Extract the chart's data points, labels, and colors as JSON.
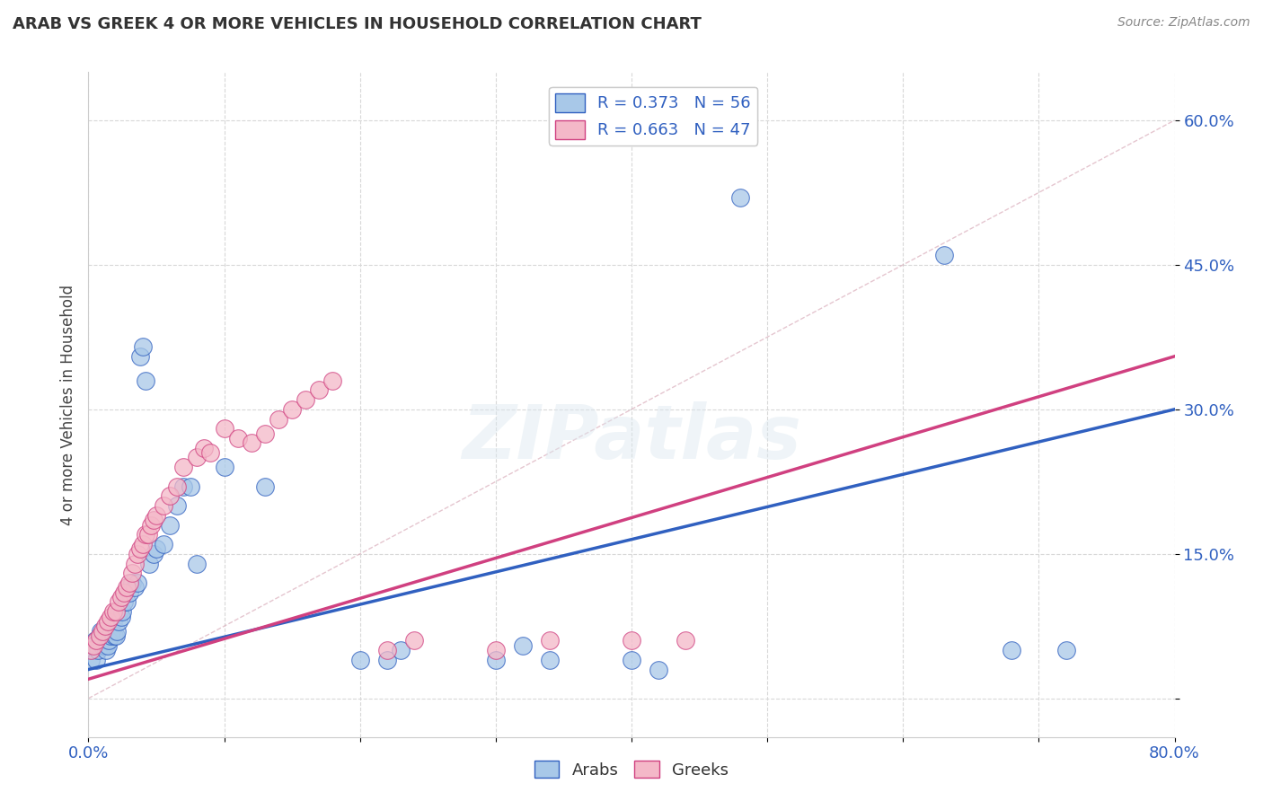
{
  "title": "ARAB VS GREEK 4 OR MORE VEHICLES IN HOUSEHOLD CORRELATION CHART",
  "source": "Source: ZipAtlas.com",
  "ylabel_label": "4 or more Vehicles in Household",
  "yticks": [
    0.0,
    0.15,
    0.3,
    0.45,
    0.6
  ],
  "ytick_labels": [
    "",
    "15.0%",
    "30.0%",
    "45.0%",
    "60.0%"
  ],
  "xlim": [
    0.0,
    0.8
  ],
  "ylim": [
    -0.04,
    0.65
  ],
  "arab_color": "#a8c8e8",
  "greek_color": "#f4b8c8",
  "arab_line_color": "#3060c0",
  "greek_line_color": "#d04080",
  "legend_R_arab": "R = 0.373",
  "legend_N_arab": "N = 56",
  "legend_R_greek": "R = 0.663",
  "legend_N_greek": "N = 47",
  "arab_scatter": [
    [
      0.002,
      0.04
    ],
    [
      0.003,
      0.05
    ],
    [
      0.004,
      0.055
    ],
    [
      0.005,
      0.06
    ],
    [
      0.006,
      0.04
    ],
    [
      0.007,
      0.05
    ],
    [
      0.008,
      0.06
    ],
    [
      0.009,
      0.07
    ],
    [
      0.01,
      0.055
    ],
    [
      0.011,
      0.06
    ],
    [
      0.012,
      0.055
    ],
    [
      0.013,
      0.05
    ],
    [
      0.014,
      0.055
    ],
    [
      0.015,
      0.06
    ],
    [
      0.016,
      0.065
    ],
    [
      0.017,
      0.07
    ],
    [
      0.018,
      0.08
    ],
    [
      0.019,
      0.065
    ],
    [
      0.02,
      0.065
    ],
    [
      0.021,
      0.07
    ],
    [
      0.022,
      0.08
    ],
    [
      0.023,
      0.09
    ],
    [
      0.024,
      0.085
    ],
    [
      0.025,
      0.09
    ],
    [
      0.026,
      0.1
    ],
    [
      0.028,
      0.1
    ],
    [
      0.03,
      0.11
    ],
    [
      0.032,
      0.12
    ],
    [
      0.034,
      0.115
    ],
    [
      0.036,
      0.12
    ],
    [
      0.038,
      0.355
    ],
    [
      0.04,
      0.365
    ],
    [
      0.042,
      0.33
    ],
    [
      0.045,
      0.14
    ],
    [
      0.048,
      0.15
    ],
    [
      0.05,
      0.155
    ],
    [
      0.055,
      0.16
    ],
    [
      0.06,
      0.18
    ],
    [
      0.065,
      0.2
    ],
    [
      0.07,
      0.22
    ],
    [
      0.075,
      0.22
    ],
    [
      0.08,
      0.14
    ],
    [
      0.1,
      0.24
    ],
    [
      0.13,
      0.22
    ],
    [
      0.2,
      0.04
    ],
    [
      0.22,
      0.04
    ],
    [
      0.23,
      0.05
    ],
    [
      0.3,
      0.04
    ],
    [
      0.32,
      0.055
    ],
    [
      0.34,
      0.04
    ],
    [
      0.4,
      0.04
    ],
    [
      0.42,
      0.03
    ],
    [
      0.48,
      0.52
    ],
    [
      0.63,
      0.46
    ],
    [
      0.68,
      0.05
    ],
    [
      0.72,
      0.05
    ]
  ],
  "greek_scatter": [
    [
      0.002,
      0.05
    ],
    [
      0.004,
      0.055
    ],
    [
      0.006,
      0.06
    ],
    [
      0.008,
      0.065
    ],
    [
      0.01,
      0.07
    ],
    [
      0.012,
      0.075
    ],
    [
      0.014,
      0.08
    ],
    [
      0.016,
      0.085
    ],
    [
      0.018,
      0.09
    ],
    [
      0.02,
      0.09
    ],
    [
      0.022,
      0.1
    ],
    [
      0.024,
      0.105
    ],
    [
      0.026,
      0.11
    ],
    [
      0.028,
      0.115
    ],
    [
      0.03,
      0.12
    ],
    [
      0.032,
      0.13
    ],
    [
      0.034,
      0.14
    ],
    [
      0.036,
      0.15
    ],
    [
      0.038,
      0.155
    ],
    [
      0.04,
      0.16
    ],
    [
      0.042,
      0.17
    ],
    [
      0.044,
      0.17
    ],
    [
      0.046,
      0.18
    ],
    [
      0.048,
      0.185
    ],
    [
      0.05,
      0.19
    ],
    [
      0.055,
      0.2
    ],
    [
      0.06,
      0.21
    ],
    [
      0.065,
      0.22
    ],
    [
      0.07,
      0.24
    ],
    [
      0.08,
      0.25
    ],
    [
      0.085,
      0.26
    ],
    [
      0.09,
      0.255
    ],
    [
      0.1,
      0.28
    ],
    [
      0.11,
      0.27
    ],
    [
      0.12,
      0.265
    ],
    [
      0.13,
      0.275
    ],
    [
      0.14,
      0.29
    ],
    [
      0.15,
      0.3
    ],
    [
      0.16,
      0.31
    ],
    [
      0.17,
      0.32
    ],
    [
      0.18,
      0.33
    ],
    [
      0.22,
      0.05
    ],
    [
      0.24,
      0.06
    ],
    [
      0.3,
      0.05
    ],
    [
      0.34,
      0.06
    ],
    [
      0.4,
      0.06
    ],
    [
      0.44,
      0.06
    ]
  ]
}
